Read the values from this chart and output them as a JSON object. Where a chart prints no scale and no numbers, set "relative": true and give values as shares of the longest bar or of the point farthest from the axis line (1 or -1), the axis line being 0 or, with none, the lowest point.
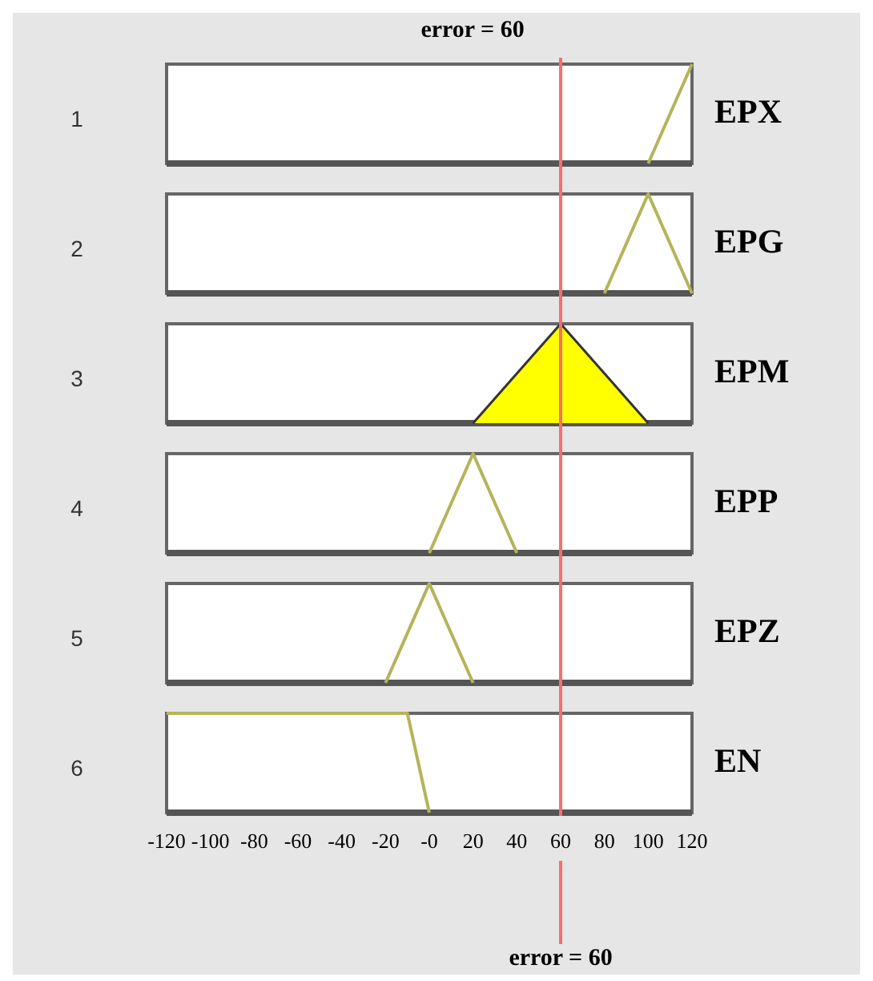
{
  "chart_data": [
    {
      "type": "line",
      "title": "error = 60",
      "ylabel": "1",
      "xlim": [
        -120,
        120
      ],
      "relative": true,
      "tick_labels": false,
      "ref_lines": [
        {
          "axis": "x",
          "value": 60,
          "color": "#ff6b6b"
        }
      ],
      "series": [
        {
          "name": "EPX",
          "color": "#b4b45a",
          "x": [
            100,
            120
          ],
          "values": [
            0,
            1
          ]
        }
      ]
    },
    {
      "type": "line",
      "ylabel": "2",
      "xlim": [
        -120,
        120
      ],
      "relative": true,
      "tick_labels": false,
      "ref_lines": [
        {
          "axis": "x",
          "value": 60,
          "color": "#ff6b6b"
        }
      ],
      "series": [
        {
          "name": "EPG",
          "color": "#b4b45a",
          "x": [
            80,
            100,
            120
          ],
          "values": [
            0,
            1,
            0
          ]
        }
      ]
    },
    {
      "type": "area",
      "ylabel": "3",
      "xlim": [
        -120,
        120
      ],
      "relative": true,
      "tick_labels": false,
      "ref_lines": [
        {
          "axis": "x",
          "value": 60,
          "color": "#ff6b6b"
        }
      ],
      "series": [
        {
          "name": "EPM",
          "color": "#ffff00",
          "x": [
            20,
            60,
            100
          ],
          "values": [
            0,
            1,
            0
          ]
        }
      ]
    },
    {
      "type": "line",
      "ylabel": "4",
      "xlim": [
        -120,
        120
      ],
      "relative": true,
      "tick_labels": false,
      "ref_lines": [
        {
          "axis": "x",
          "value": 60,
          "color": "#ff6b6b"
        }
      ],
      "series": [
        {
          "name": "EPP",
          "color": "#b4b45a",
          "x": [
            0,
            20,
            40
          ],
          "values": [
            0,
            1,
            0
          ]
        }
      ]
    },
    {
      "type": "line",
      "ylabel": "5",
      "xlim": [
        -120,
        120
      ],
      "relative": true,
      "tick_labels": false,
      "ref_lines": [
        {
          "axis": "x",
          "value": 60,
          "color": "#ff6b6b"
        }
      ],
      "series": [
        {
          "name": "EPZ",
          "color": "#b4b45a",
          "x": [
            -20,
            0,
            20
          ],
          "values": [
            0,
            1,
            0
          ]
        }
      ]
    },
    {
      "type": "line",
      "ylabel": "6",
      "xlim": [
        -120,
        120
      ],
      "xticks": [
        -120,
        -100,
        -80,
        -60,
        -40,
        -20,
        {
          "value": 0,
          "label": "-0"
        },
        20,
        40,
        60,
        80,
        100,
        120
      ],
      "relative": true,
      "tick_labels": "x",
      "annotations": [
        "error = 60"
      ],
      "ref_lines": [
        {
          "axis": "x",
          "value": 60,
          "color": "#ff6b6b"
        }
      ],
      "series": [
        {
          "name": "EN",
          "color": "#b4b45a",
          "x": [
            -120,
            -10,
            0
          ],
          "values": [
            1,
            1,
            0
          ]
        }
      ]
    }
  ]
}
